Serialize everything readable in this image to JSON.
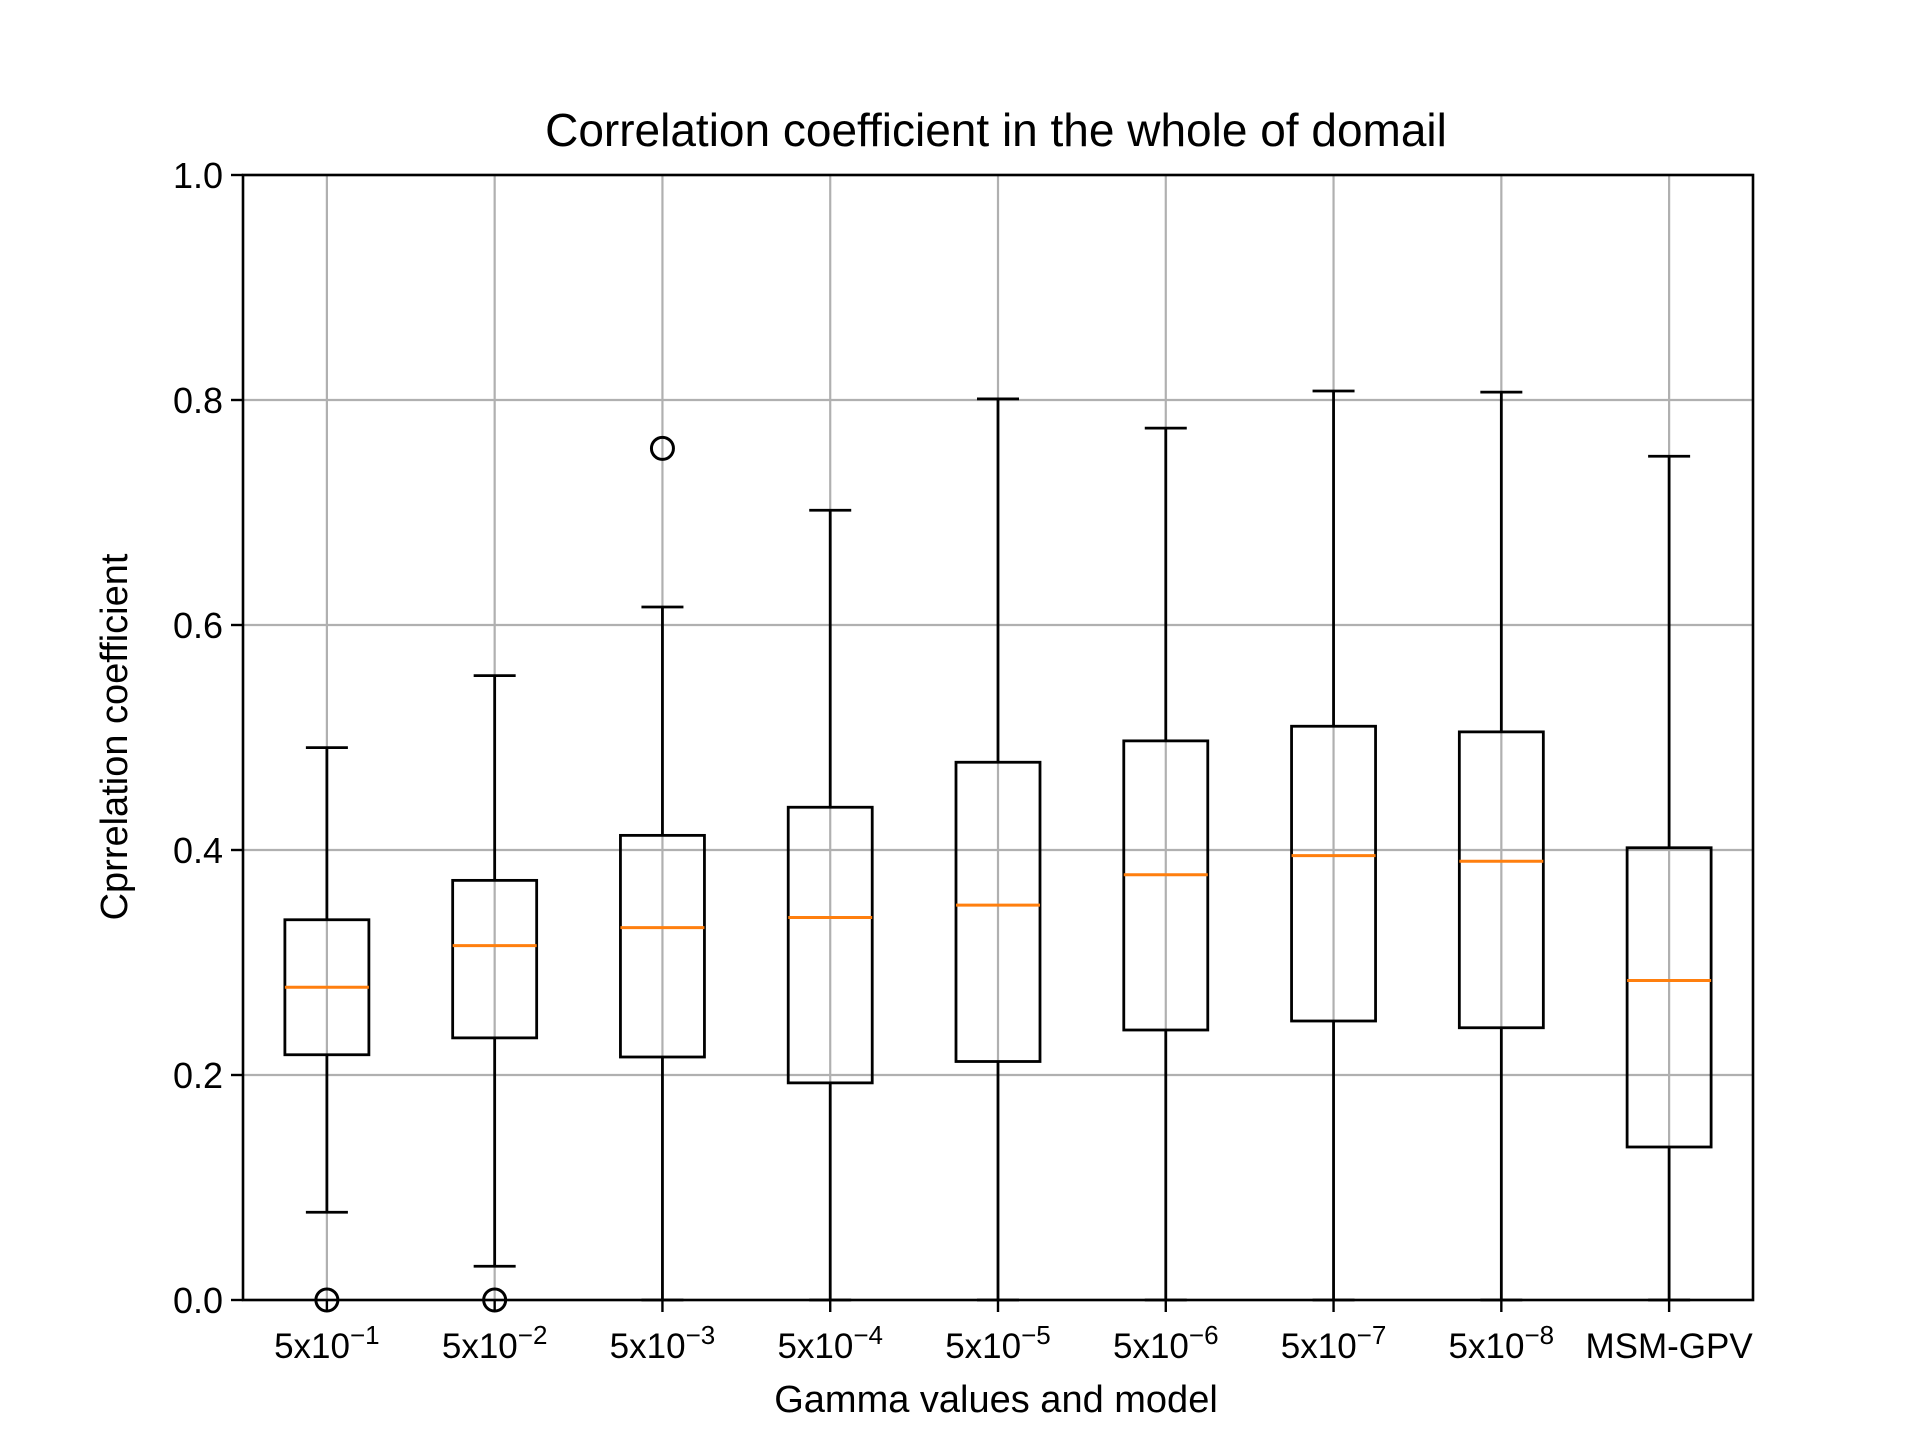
{
  "chart_data": {
    "type": "box",
    "title": "Correlation coefficient in the whole of domail",
    "xlabel": "Gamma values and model",
    "ylabel": "Cprrelation coefficient",
    "ylim": [
      0.0,
      1.0
    ],
    "yticks": [
      "0.0",
      "0.2",
      "0.4",
      "0.6",
      "0.8",
      "1.0"
    ],
    "grid": true,
    "categories": [
      {
        "base": "5x10",
        "exp": "−1"
      },
      {
        "base": "5x10",
        "exp": "−2"
      },
      {
        "base": "5x10",
        "exp": "−3"
      },
      {
        "base": "5x10",
        "exp": "−4"
      },
      {
        "base": "5x10",
        "exp": "−5"
      },
      {
        "base": "5x10",
        "exp": "−6"
      },
      {
        "base": "5x10",
        "exp": "−7"
      },
      {
        "base": "5x10",
        "exp": "−8"
      },
      {
        "base": "MSM-GPV",
        "exp": ""
      }
    ],
    "boxes": [
      {
        "whisker_low": 0.078,
        "q1": 0.218,
        "median": 0.278,
        "q3": 0.338,
        "whisker_high": 0.491,
        "outliers": [
          0.0
        ]
      },
      {
        "whisker_low": 0.03,
        "q1": 0.233,
        "median": 0.315,
        "q3": 0.373,
        "whisker_high": 0.555,
        "outliers": [
          0.0
        ]
      },
      {
        "whisker_low": 0.0,
        "q1": 0.216,
        "median": 0.331,
        "q3": 0.413,
        "whisker_high": 0.616,
        "outliers": [
          0.757
        ]
      },
      {
        "whisker_low": 0.0,
        "q1": 0.193,
        "median": 0.34,
        "q3": 0.438,
        "whisker_high": 0.702,
        "outliers": []
      },
      {
        "whisker_low": 0.0,
        "q1": 0.212,
        "median": 0.351,
        "q3": 0.478,
        "whisker_high": 0.801,
        "outliers": []
      },
      {
        "whisker_low": 0.0,
        "q1": 0.24,
        "median": 0.378,
        "q3": 0.497,
        "whisker_high": 0.775,
        "outliers": []
      },
      {
        "whisker_low": 0.0,
        "q1": 0.248,
        "median": 0.395,
        "q3": 0.51,
        "whisker_high": 0.808,
        "outliers": []
      },
      {
        "whisker_low": 0.0,
        "q1": 0.242,
        "median": 0.39,
        "q3": 0.505,
        "whisker_high": 0.807,
        "outliers": []
      },
      {
        "whisker_low": 0.0,
        "q1": 0.136,
        "median": 0.284,
        "q3": 0.402,
        "whisker_high": 0.75,
        "outliers": []
      }
    ],
    "colors": {
      "box": "#000000",
      "median": "#ff7f0e",
      "grid": "#b0b0b0",
      "frame": "#000000"
    }
  }
}
